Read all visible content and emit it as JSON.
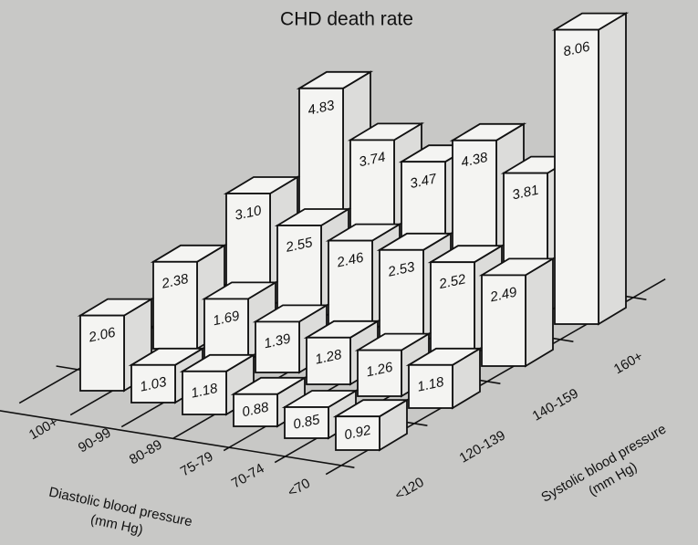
{
  "chart_data": {
    "type": "bar3d",
    "title": "CHD death rate",
    "x_axis_label": [
      "Diastolic blood pressure",
      "(mm Hg)"
    ],
    "z_axis_label": [
      "Systolic blood pressure",
      "(mm Hg)"
    ],
    "categories": [
      "100+",
      "90-99",
      "80-89",
      "75-79",
      "70-74",
      "<70"
    ],
    "series": [
      {
        "name": "<120",
        "color": "#f4f4f2",
        "values": [
          2.06,
          1.03,
          1.18,
          0.88,
          0.85,
          0.92
        ],
        "value_labels": [
          "2.06",
          "1.03",
          "1.18",
          "0.88",
          "0.85",
          "0.92"
        ]
      },
      {
        "name": "120-139",
        "color": "#f4f4f2",
        "values": [
          2.38,
          1.69,
          1.39,
          1.28,
          1.26,
          1.18
        ],
        "value_labels": [
          "2.38",
          "1.69",
          "1.39",
          "1.28",
          "1.26",
          "1.18"
        ]
      },
      {
        "name": "140-159",
        "color": "#f4f4f2",
        "values": [
          3.1,
          2.55,
          2.46,
          2.53,
          2.52,
          2.49
        ],
        "value_labels": [
          "3.10",
          "2.55",
          "2.46",
          "2.53",
          "2.52",
          "2.49"
        ]
      },
      {
        "name": "160+",
        "color": "#f4f4f2",
        "values": [
          4.83,
          3.74,
          3.47,
          4.38,
          3.81,
          8.06
        ],
        "value_labels": [
          "4.83",
          "3.74",
          "3.47",
          "4.38",
          "3.81",
          "8.06"
        ]
      }
    ]
  }
}
